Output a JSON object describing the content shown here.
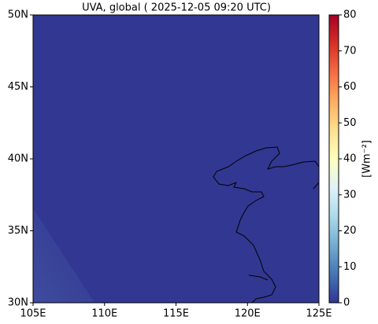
{
  "chart_data": {
    "type": "map",
    "title": "UVA, global ( 2025-12-05 09:20 UTC)",
    "xlim": [
      105,
      125
    ],
    "ylim": [
      30,
      50
    ],
    "xticks": [
      {
        "value": 105,
        "label": "105E"
      },
      {
        "value": 110,
        "label": "110E"
      },
      {
        "value": 115,
        "label": "115E"
      },
      {
        "value": 120,
        "label": "120E"
      },
      {
        "value": 125,
        "label": "125E"
      }
    ],
    "yticks": [
      {
        "value": 30,
        "label": "30N"
      },
      {
        "value": 35,
        "label": "35N"
      },
      {
        "value": 40,
        "label": "40N"
      },
      {
        "value": 45,
        "label": "45N"
      },
      {
        "value": 50,
        "label": "50N"
      }
    ],
    "colorbar": {
      "label": "[Wm⁻²]",
      "lim": [
        0,
        80
      ],
      "ticks": [
        0,
        10,
        20,
        30,
        40,
        50,
        60,
        70,
        80
      ],
      "colormap": [
        "#313695",
        "#4575b4",
        "#74add1",
        "#abd9e9",
        "#e0f3f8",
        "#ffffbf",
        "#fee090",
        "#fdae61",
        "#f46d43",
        "#d73027",
        "#a50026"
      ]
    },
    "field_color": "#323791"
  }
}
